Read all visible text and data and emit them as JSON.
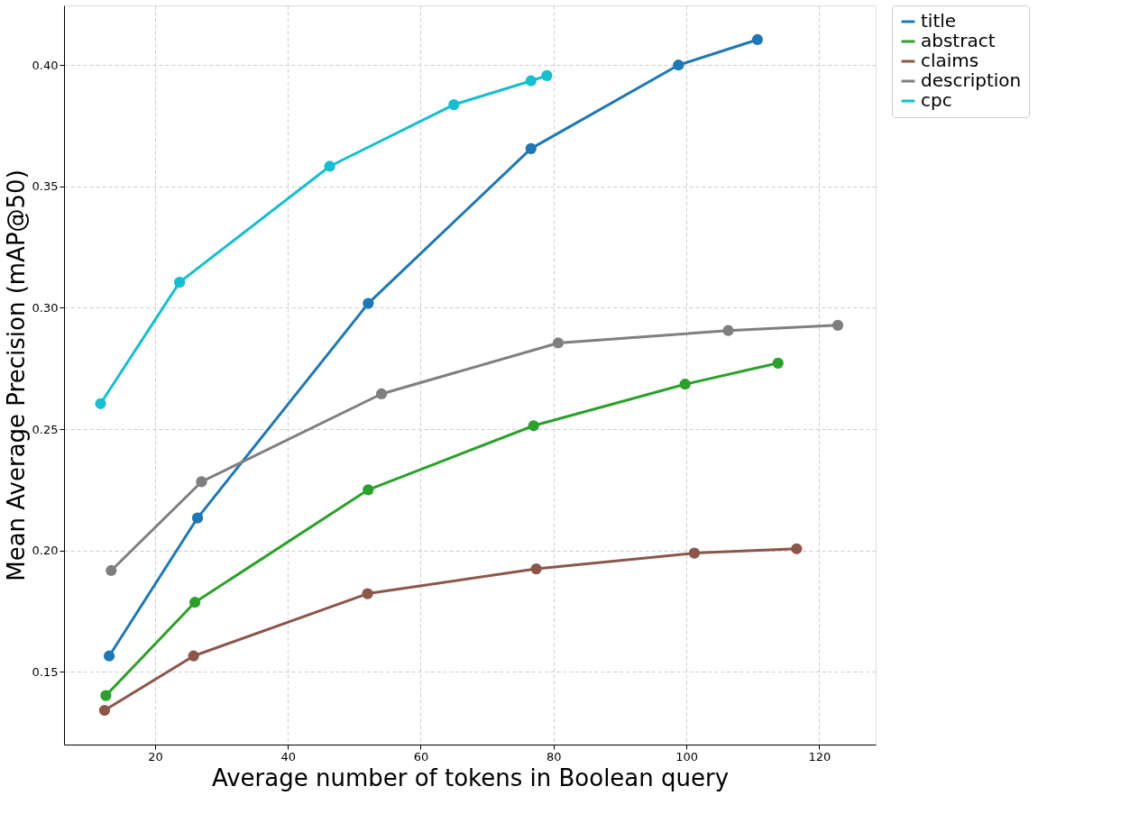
{
  "chart_data": {
    "type": "line",
    "xlabel": "Average number of tokens in Boolean query",
    "ylabel": "Mean Average Precision (mAP@50)",
    "xlim": [
      6.3,
      128.5
    ],
    "xticks": [
      20,
      40,
      60,
      80,
      100,
      120
    ],
    "ylim": [
      0.12,
      0.4246
    ],
    "yticks": [
      {
        "value": 0.15,
        "label": "0.15"
      },
      {
        "value": 0.2,
        "label": "0.20"
      },
      {
        "value": 0.25,
        "label": "0.25"
      },
      {
        "value": 0.3,
        "label": "0.30"
      },
      {
        "value": 0.35,
        "label": "0.35"
      },
      {
        "value": 0.4,
        "label": "0.40"
      }
    ],
    "grid": true,
    "legend": "top right",
    "marker": "circle",
    "line_style": "solid",
    "series": [
      {
        "name": "title",
        "color": "#1f77b4",
        "x": [
          13.1,
          26.4,
          52.1,
          76.6,
          98.8,
          110.7
        ],
        "values": [
          0.1565,
          0.2134,
          0.3018,
          0.3656,
          0.4,
          0.4105
        ]
      },
      {
        "name": "abstract",
        "color": "#2ca02c",
        "x": [
          12.6,
          26.0,
          52.1,
          77.0,
          99.8,
          113.8
        ],
        "values": [
          0.1402,
          0.1786,
          0.225,
          0.2514,
          0.2685,
          0.2772
        ]
      },
      {
        "name": "claims",
        "color": "#8c564b",
        "x": [
          12.4,
          25.8,
          52.0,
          77.4,
          101.2,
          116.6
        ],
        "values": [
          0.1341,
          0.1565,
          0.1822,
          0.1924,
          0.1989,
          0.2007
        ]
      },
      {
        "name": "description",
        "color": "#7f7f7f",
        "x": [
          13.4,
          27.0,
          54.1,
          80.7,
          106.3,
          122.8
        ],
        "values": [
          0.1917,
          0.2283,
          0.2645,
          0.2855,
          0.2906,
          0.2928
        ]
      },
      {
        "name": "cpc",
        "color": "#17becf",
        "x": [
          11.8,
          23.7,
          46.3,
          65.0,
          76.6,
          79.0
        ],
        "values": [
          0.2605,
          0.3105,
          0.3583,
          0.3837,
          0.3935,
          0.3957
        ]
      }
    ]
  }
}
